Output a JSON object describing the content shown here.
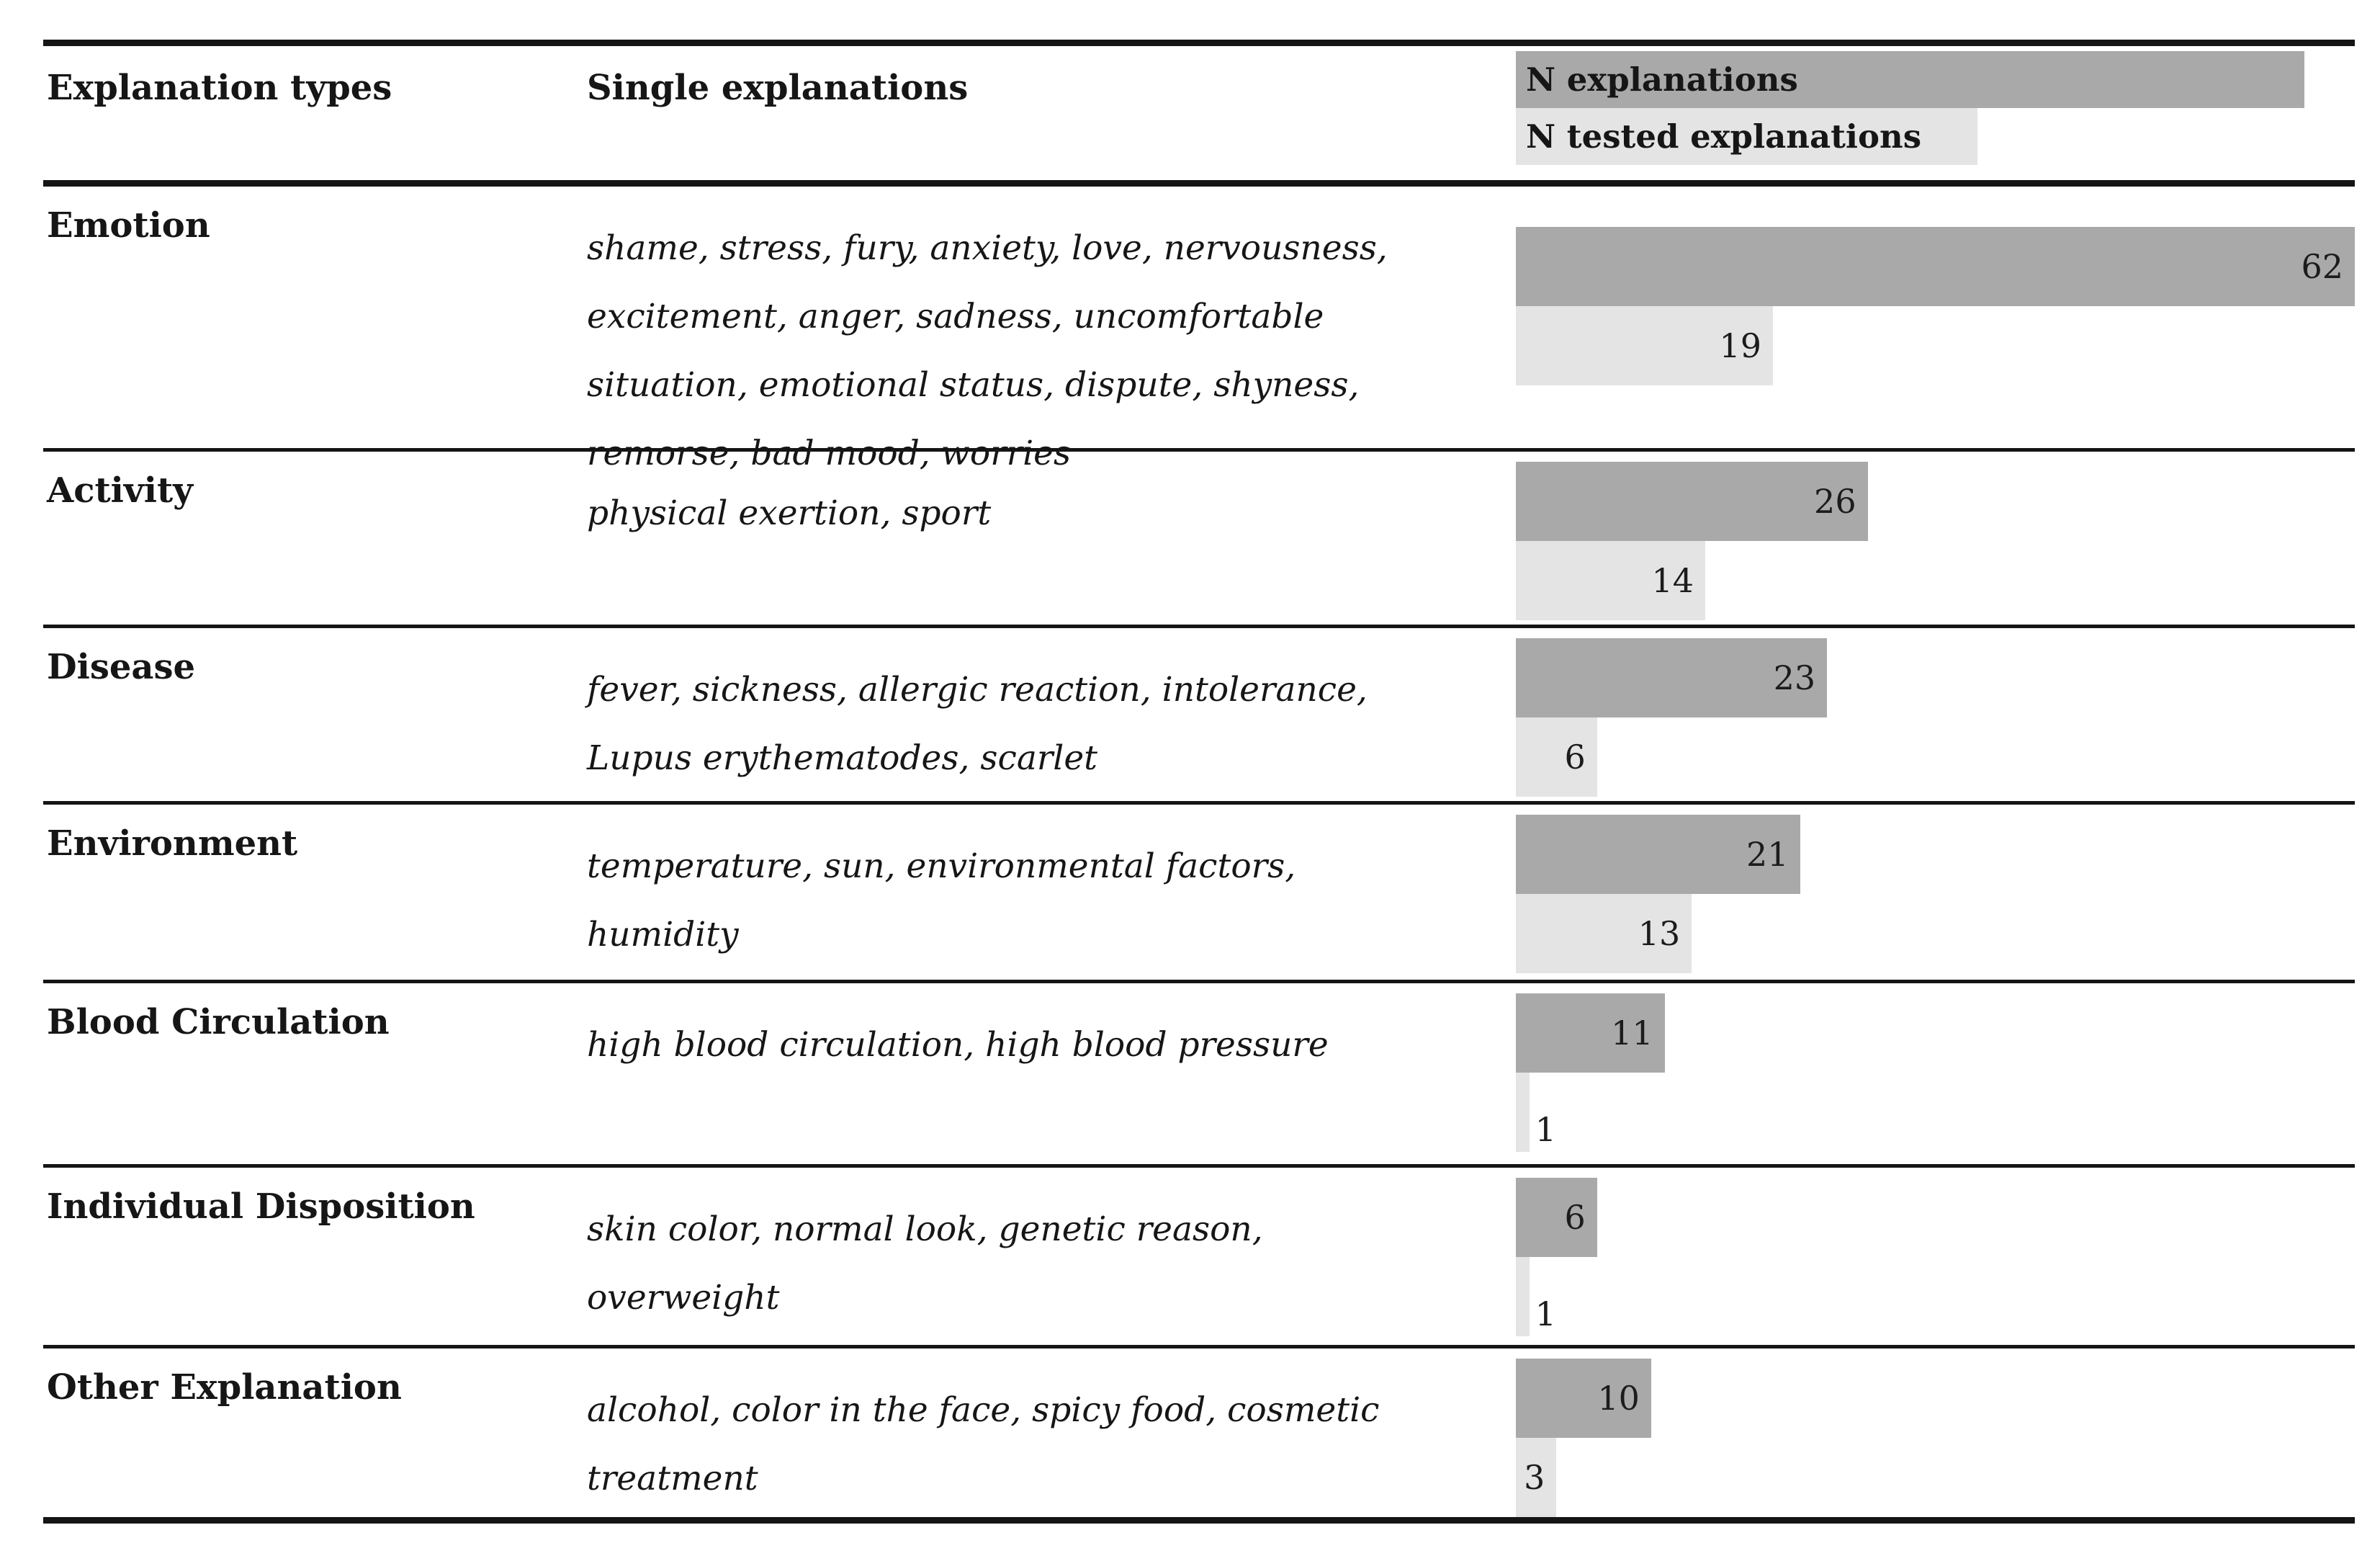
{
  "table": {
    "headers": {
      "explanation_types": "Explanation types",
      "single_explanations": "Single explanations"
    },
    "legend": [
      {
        "label": "N explanations",
        "color": "#a9a9a9",
        "width_pct": 94
      },
      {
        "label": "N tested explanations",
        "color": "#e4e4e4",
        "width_pct": 55
      }
    ],
    "rows": [
      {
        "type": "Emotion",
        "explanations": "shame, stress, fury, anxiety, love, nervousness, excitement, anger, sadness, uncomfortable situation, emotional status, dispute, shyness, remorse, bad mood, worries",
        "n_explanations": 62,
        "n_tested_explanations": 19
      },
      {
        "type": "Activity",
        "explanations": "physical exertion, sport",
        "n_explanations": 26,
        "n_tested_explanations": 14
      },
      {
        "type": "Disease",
        "explanations": "fever, sickness, allergic reaction, intolerance, Lupus erythematodes, scarlet",
        "n_explanations": 23,
        "n_tested_explanations": 6
      },
      {
        "type": "Environment",
        "explanations": "temperature, sun, environmental factors, humidity",
        "n_explanations": 21,
        "n_tested_explanations": 13
      },
      {
        "type": "Blood Circulation",
        "explanations": "high blood circulation, high blood pressure",
        "n_explanations": 11,
        "n_tested_explanations": 1
      },
      {
        "type": "Individual Disposition",
        "explanations": "skin color, normal look, genetic reason, overweight",
        "n_explanations": 6,
        "n_tested_explanations": 1
      },
      {
        "type": "Other Explanation",
        "explanations": "alcohol, color in the face, spicy food, cosmetic treatment",
        "n_explanations": 10,
        "n_tested_explanations": 3
      }
    ]
  },
  "chart_data": {
    "type": "bar",
    "orientation": "horizontal",
    "title": "",
    "xlabel": "",
    "ylabel": "",
    "categories": [
      "Emotion",
      "Activity",
      "Disease",
      "Environment",
      "Blood Circulation",
      "Individual Disposition",
      "Other Explanation"
    ],
    "series": [
      {
        "name": "N explanations",
        "values": [
          62,
          26,
          23,
          21,
          11,
          6,
          10
        ],
        "color": "#a9a9a9"
      },
      {
        "name": "N tested explanations",
        "values": [
          19,
          14,
          6,
          13,
          1,
          1,
          3
        ],
        "color": "#e4e4e4"
      }
    ],
    "xlim": [
      0,
      62
    ],
    "value_labels": true,
    "grid": false,
    "axes_shown": false,
    "legend_position": "top-right-header"
  },
  "colors": {
    "dark_bar": "#a9a9a9",
    "light_bar": "#e4e4e4",
    "rule": "#151515",
    "text": "#161616",
    "background": "#ffffff"
  }
}
